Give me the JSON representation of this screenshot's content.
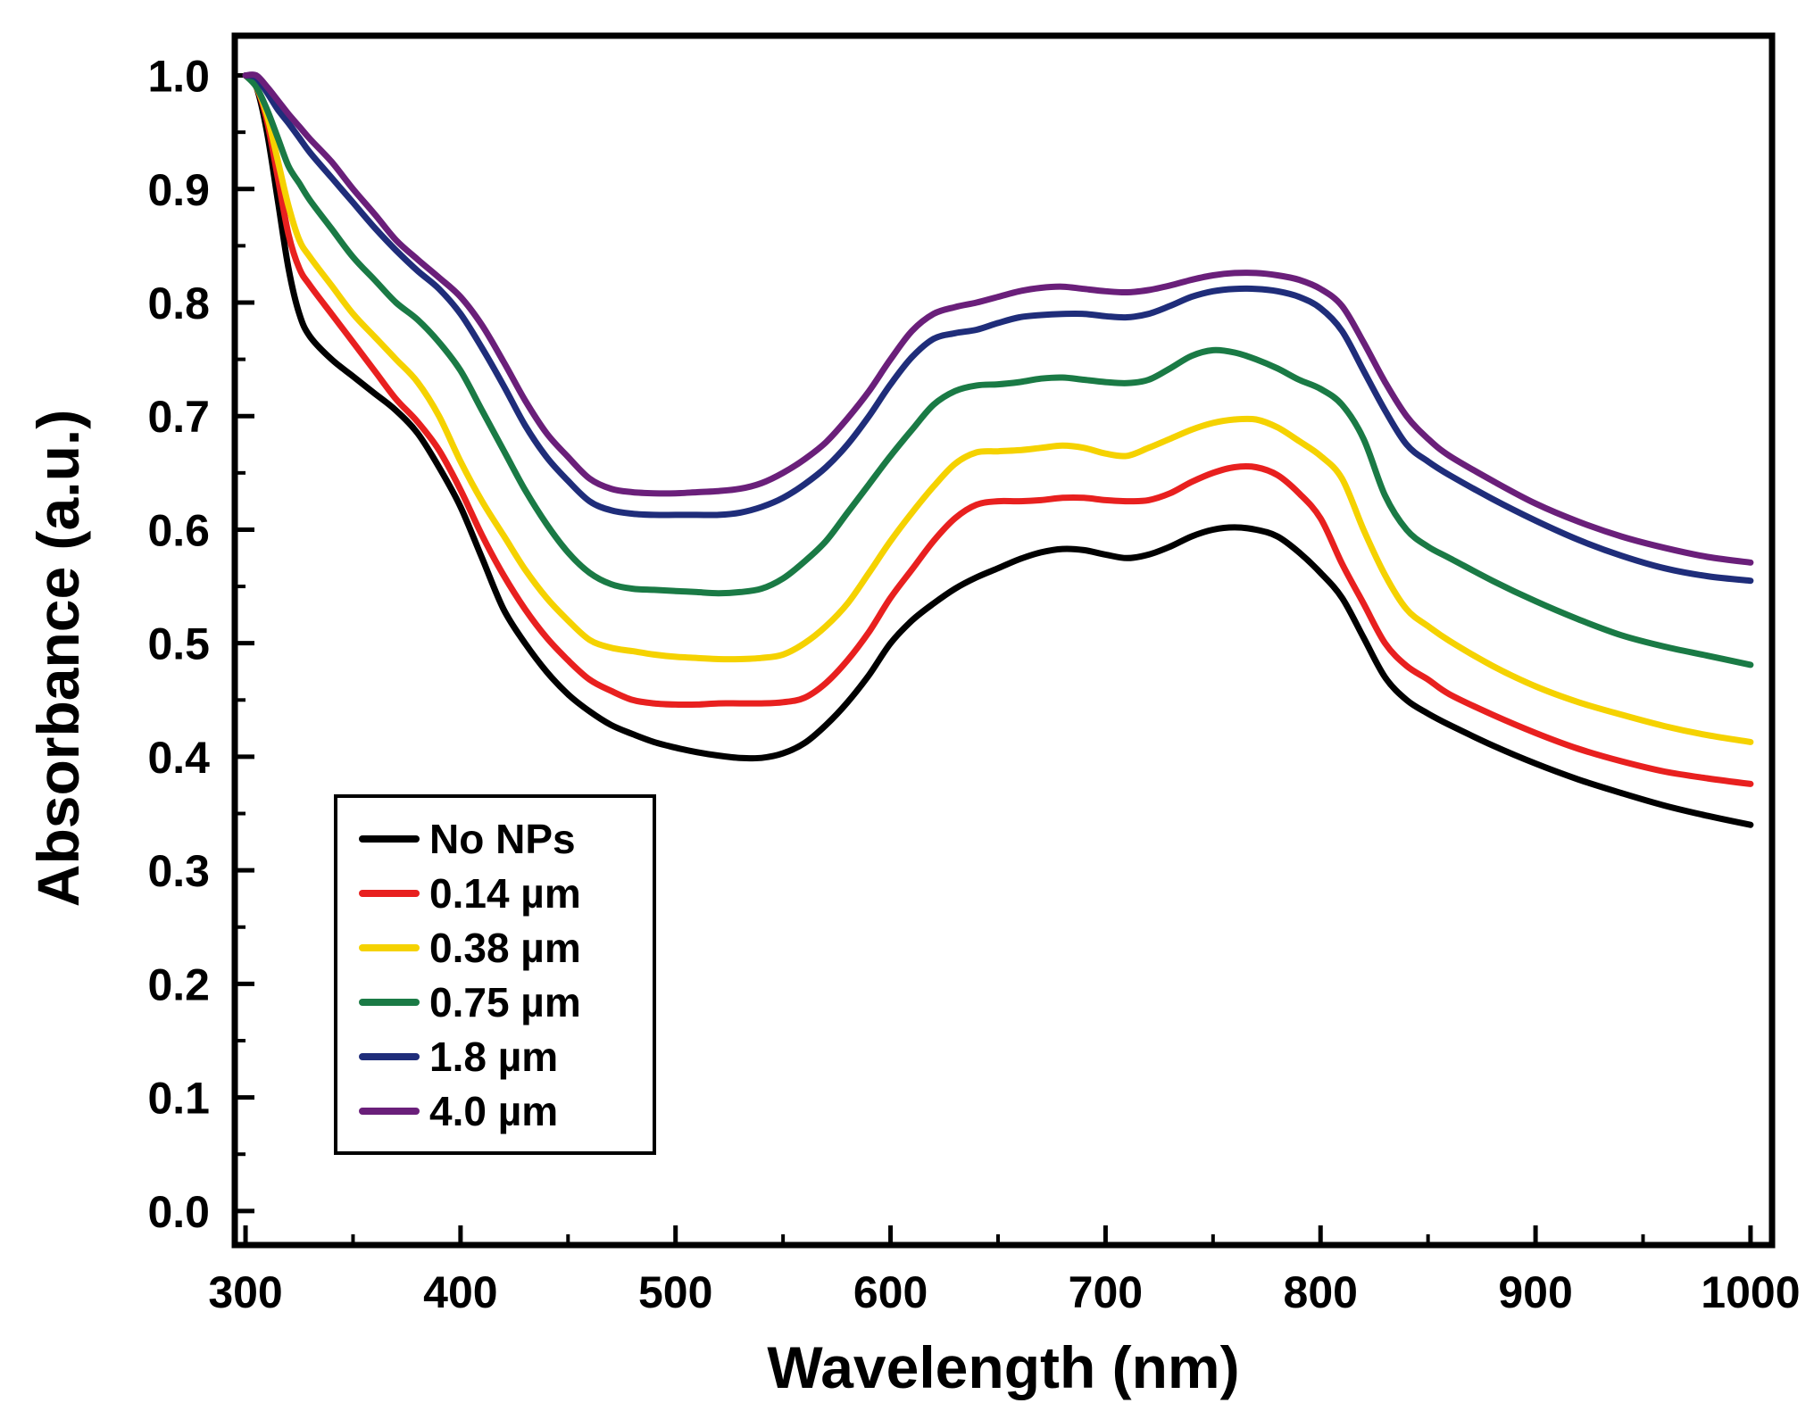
{
  "chart_data": {
    "type": "line",
    "title": "",
    "xlabel": "Wavelength (nm)",
    "ylabel": "Absorbance (a.u.)",
    "xlim": [
      295,
      1010
    ],
    "ylim": [
      -0.03,
      1.035
    ],
    "xticks": [
      300,
      400,
      500,
      600,
      700,
      800,
      900,
      1000
    ],
    "xtick_labels": [
      "300",
      "400",
      "500",
      "600",
      "700",
      "800",
      "900",
      "1000"
    ],
    "yticks": [
      0.0,
      0.1,
      0.2,
      0.3,
      0.4,
      0.5,
      0.6,
      0.7,
      0.8,
      0.9,
      1.0
    ],
    "ytick_labels": [
      "0.0",
      "0.1",
      "0.2",
      "0.3",
      "0.4",
      "0.5",
      "0.6",
      "0.7",
      "0.8",
      "0.9",
      "1.0"
    ],
    "legend_position": "bottom-left",
    "series": [
      {
        "name": "No NPs",
        "color": "#000000",
        "x": [
          300,
          305,
          310,
          315,
          320,
          325,
          330,
          340,
          350,
          360,
          370,
          380,
          390,
          400,
          410,
          420,
          430,
          440,
          450,
          460,
          470,
          480,
          490,
          500,
          510,
          520,
          530,
          540,
          550,
          560,
          570,
          580,
          590,
          600,
          610,
          620,
          630,
          640,
          650,
          660,
          670,
          680,
          690,
          700,
          710,
          720,
          730,
          740,
          750,
          760,
          770,
          780,
          790,
          800,
          810,
          820,
          830,
          840,
          850,
          860,
          880,
          900,
          920,
          940,
          960,
          980,
          1000
        ],
        "y": [
          1.0,
          0.99,
          0.95,
          0.89,
          0.83,
          0.79,
          0.77,
          0.75,
          0.735,
          0.72,
          0.705,
          0.685,
          0.655,
          0.62,
          0.575,
          0.53,
          0.5,
          0.475,
          0.455,
          0.44,
          0.428,
          0.42,
          0.413,
          0.408,
          0.404,
          0.401,
          0.399,
          0.399,
          0.403,
          0.412,
          0.428,
          0.448,
          0.472,
          0.5,
          0.52,
          0.535,
          0.548,
          0.558,
          0.566,
          0.574,
          0.58,
          0.583,
          0.582,
          0.578,
          0.575,
          0.578,
          0.585,
          0.594,
          0.6,
          0.602,
          0.6,
          0.594,
          0.58,
          0.562,
          0.54,
          0.505,
          0.47,
          0.45,
          0.438,
          0.428,
          0.41,
          0.394,
          0.38,
          0.368,
          0.357,
          0.348,
          0.34
        ]
      },
      {
        "name": "0.14 µm",
        "color": "#e8201f",
        "x": [
          300,
          305,
          310,
          315,
          320,
          325,
          330,
          340,
          350,
          360,
          370,
          380,
          390,
          400,
          410,
          420,
          430,
          440,
          450,
          460,
          470,
          480,
          490,
          500,
          510,
          520,
          530,
          540,
          550,
          560,
          570,
          580,
          590,
          600,
          610,
          620,
          630,
          640,
          650,
          660,
          670,
          680,
          690,
          700,
          710,
          720,
          730,
          740,
          750,
          760,
          770,
          780,
          790,
          800,
          810,
          820,
          830,
          840,
          850,
          860,
          880,
          900,
          920,
          940,
          960,
          980,
          1000
        ],
        "y": [
          1.0,
          0.99,
          0.96,
          0.91,
          0.86,
          0.83,
          0.815,
          0.79,
          0.765,
          0.74,
          0.715,
          0.695,
          0.67,
          0.635,
          0.595,
          0.56,
          0.53,
          0.505,
          0.485,
          0.468,
          0.458,
          0.45,
          0.447,
          0.446,
          0.446,
          0.447,
          0.447,
          0.447,
          0.448,
          0.452,
          0.465,
          0.485,
          0.51,
          0.54,
          0.565,
          0.59,
          0.61,
          0.622,
          0.625,
          0.625,
          0.626,
          0.628,
          0.628,
          0.626,
          0.625,
          0.626,
          0.632,
          0.642,
          0.65,
          0.655,
          0.655,
          0.648,
          0.632,
          0.61,
          0.57,
          0.535,
          0.5,
          0.48,
          0.468,
          0.455,
          0.437,
          0.421,
          0.407,
          0.396,
          0.387,
          0.381,
          0.376
        ]
      },
      {
        "name": "0.38 µm",
        "color": "#f5d200",
        "x": [
          300,
          305,
          310,
          315,
          320,
          325,
          330,
          340,
          350,
          360,
          370,
          380,
          390,
          400,
          410,
          420,
          430,
          440,
          450,
          460,
          470,
          480,
          490,
          500,
          510,
          520,
          530,
          540,
          550,
          560,
          570,
          580,
          590,
          600,
          610,
          620,
          630,
          640,
          650,
          660,
          670,
          680,
          690,
          700,
          710,
          720,
          730,
          740,
          750,
          760,
          770,
          780,
          790,
          800,
          810,
          820,
          830,
          840,
          850,
          860,
          880,
          900,
          920,
          940,
          960,
          980,
          1000
        ],
        "y": [
          1.0,
          0.99,
          0.965,
          0.925,
          0.885,
          0.855,
          0.84,
          0.815,
          0.79,
          0.77,
          0.75,
          0.73,
          0.7,
          0.66,
          0.625,
          0.595,
          0.565,
          0.54,
          0.52,
          0.503,
          0.496,
          0.493,
          0.49,
          0.488,
          0.487,
          0.486,
          0.486,
          0.487,
          0.49,
          0.5,
          0.515,
          0.535,
          0.562,
          0.59,
          0.615,
          0.638,
          0.658,
          0.668,
          0.669,
          0.67,
          0.672,
          0.674,
          0.672,
          0.667,
          0.665,
          0.672,
          0.68,
          0.688,
          0.694,
          0.697,
          0.697,
          0.69,
          0.678,
          0.665,
          0.645,
          0.6,
          0.56,
          0.53,
          0.515,
          0.502,
          0.48,
          0.462,
          0.448,
          0.437,
          0.427,
          0.419,
          0.413
        ]
      },
      {
        "name": "0.75 µm",
        "color": "#1a7a45",
        "x": [
          300,
          305,
          310,
          315,
          320,
          325,
          330,
          340,
          350,
          360,
          370,
          380,
          390,
          400,
          410,
          420,
          430,
          440,
          450,
          460,
          470,
          480,
          490,
          500,
          510,
          520,
          530,
          540,
          550,
          560,
          570,
          580,
          590,
          600,
          610,
          620,
          630,
          640,
          650,
          660,
          670,
          680,
          690,
          700,
          710,
          720,
          730,
          740,
          750,
          760,
          770,
          780,
          790,
          800,
          810,
          820,
          830,
          840,
          850,
          860,
          880,
          900,
          920,
          940,
          960,
          980,
          1000
        ],
        "y": [
          1.0,
          0.99,
          0.97,
          0.945,
          0.92,
          0.905,
          0.89,
          0.865,
          0.84,
          0.82,
          0.8,
          0.785,
          0.765,
          0.74,
          0.705,
          0.67,
          0.635,
          0.605,
          0.58,
          0.562,
          0.552,
          0.548,
          0.547,
          0.546,
          0.545,
          0.544,
          0.545,
          0.548,
          0.557,
          0.572,
          0.59,
          0.615,
          0.64,
          0.665,
          0.688,
          0.71,
          0.722,
          0.727,
          0.728,
          0.73,
          0.733,
          0.734,
          0.732,
          0.73,
          0.729,
          0.732,
          0.742,
          0.753,
          0.758,
          0.756,
          0.75,
          0.742,
          0.732,
          0.724,
          0.71,
          0.68,
          0.63,
          0.6,
          0.585,
          0.575,
          0.555,
          0.537,
          0.521,
          0.507,
          0.497,
          0.489,
          0.481
        ]
      },
      {
        "name": "1.8 µm",
        "color": "#1f2d7a",
        "x": [
          300,
          305,
          310,
          315,
          320,
          325,
          330,
          340,
          350,
          360,
          370,
          380,
          390,
          400,
          410,
          420,
          430,
          440,
          450,
          460,
          470,
          480,
          490,
          500,
          510,
          520,
          530,
          540,
          550,
          560,
          570,
          580,
          590,
          600,
          610,
          620,
          630,
          640,
          650,
          660,
          670,
          680,
          690,
          700,
          710,
          720,
          730,
          740,
          750,
          760,
          770,
          780,
          790,
          800,
          810,
          820,
          830,
          840,
          850,
          860,
          880,
          900,
          920,
          940,
          960,
          980,
          1000
        ],
        "y": [
          1.0,
          0.998,
          0.985,
          0.97,
          0.958,
          0.945,
          0.932,
          0.91,
          0.888,
          0.866,
          0.846,
          0.828,
          0.812,
          0.79,
          0.76,
          0.727,
          0.692,
          0.664,
          0.643,
          0.625,
          0.617,
          0.614,
          0.613,
          0.613,
          0.613,
          0.613,
          0.615,
          0.62,
          0.628,
          0.64,
          0.655,
          0.675,
          0.7,
          0.728,
          0.752,
          0.768,
          0.773,
          0.776,
          0.782,
          0.787,
          0.789,
          0.79,
          0.79,
          0.788,
          0.787,
          0.79,
          0.797,
          0.805,
          0.81,
          0.812,
          0.812,
          0.81,
          0.805,
          0.795,
          0.775,
          0.74,
          0.705,
          0.675,
          0.66,
          0.648,
          0.627,
          0.608,
          0.591,
          0.577,
          0.566,
          0.559,
          0.555
        ]
      },
      {
        "name": "4.0 µm",
        "color": "#6a1f7a",
        "x": [
          300,
          305,
          310,
          315,
          320,
          325,
          330,
          340,
          350,
          360,
          370,
          380,
          390,
          400,
          410,
          420,
          430,
          440,
          450,
          460,
          470,
          480,
          490,
          500,
          510,
          520,
          530,
          540,
          550,
          560,
          570,
          580,
          590,
          600,
          610,
          620,
          630,
          640,
          650,
          660,
          670,
          680,
          690,
          700,
          710,
          720,
          730,
          740,
          750,
          760,
          770,
          780,
          790,
          800,
          810,
          820,
          830,
          840,
          850,
          860,
          880,
          900,
          920,
          940,
          960,
          980,
          1000
        ],
        "y": [
          1.0,
          1.0,
          0.99,
          0.978,
          0.966,
          0.955,
          0.944,
          0.924,
          0.9,
          0.878,
          0.855,
          0.838,
          0.822,
          0.805,
          0.78,
          0.748,
          0.714,
          0.685,
          0.664,
          0.645,
          0.636,
          0.633,
          0.632,
          0.632,
          0.633,
          0.634,
          0.636,
          0.641,
          0.65,
          0.662,
          0.677,
          0.698,
          0.722,
          0.75,
          0.775,
          0.79,
          0.796,
          0.8,
          0.805,
          0.81,
          0.813,
          0.814,
          0.812,
          0.81,
          0.809,
          0.811,
          0.815,
          0.82,
          0.824,
          0.826,
          0.826,
          0.824,
          0.82,
          0.812,
          0.797,
          0.765,
          0.73,
          0.7,
          0.68,
          0.665,
          0.643,
          0.623,
          0.607,
          0.594,
          0.584,
          0.576,
          0.571
        ]
      }
    ]
  }
}
